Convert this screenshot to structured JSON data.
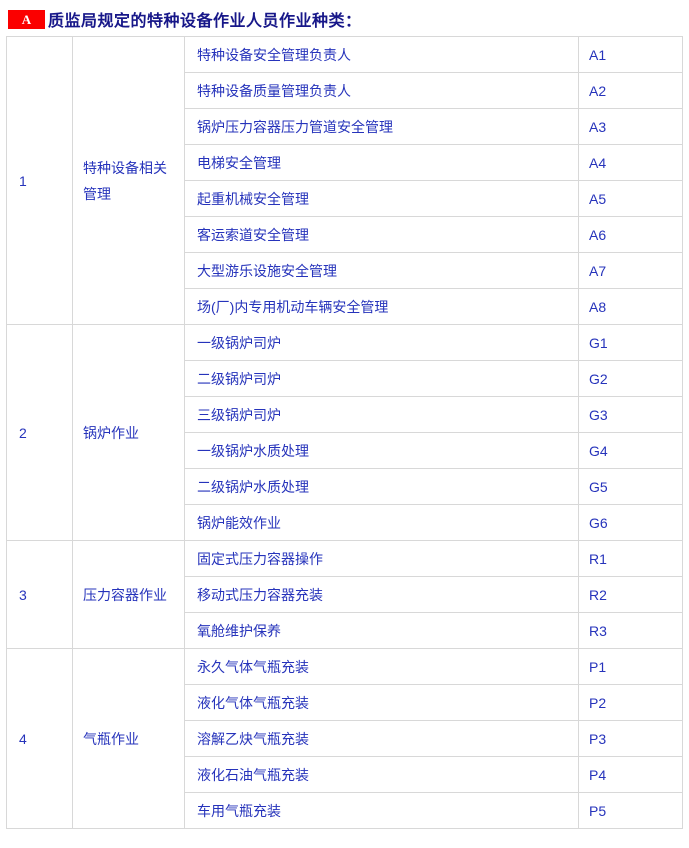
{
  "header": {
    "badge_label": "A",
    "title": "质监局规定的特种设备作业人员作业种类："
  },
  "table": {
    "groups": [
      {
        "num": "1",
        "category": "特种设备相关管理",
        "rows": [
          {
            "job": "特种设备安全管理负责人",
            "code": "A1"
          },
          {
            "job": "特种设备质量管理负责人",
            "code": "A2"
          },
          {
            "job": "锅炉压力容器压力管道安全管理",
            "code": "A3"
          },
          {
            "job": "电梯安全管理",
            "code": "A4"
          },
          {
            "job": "起重机械安全管理",
            "code": "A5"
          },
          {
            "job": "客运索道安全管理",
            "code": "A6"
          },
          {
            "job": "大型游乐设施安全管理",
            "code": "A7"
          },
          {
            "job": "场(厂)内专用机动车辆安全管理",
            "code": "A8"
          }
        ]
      },
      {
        "num": "2",
        "category": "锅炉作业",
        "rows": [
          {
            "job": "一级锅炉司炉",
            "code": "G1"
          },
          {
            "job": "二级锅炉司炉",
            "code": "G2"
          },
          {
            "job": "三级锅炉司炉",
            "code": "G3"
          },
          {
            "job": "一级锅炉水质处理",
            "code": "G4"
          },
          {
            "job": "二级锅炉水质处理",
            "code": "G5"
          },
          {
            "job": "锅炉能效作业",
            "code": "G6"
          }
        ]
      },
      {
        "num": "3",
        "category": "压力容器作业",
        "rows": [
          {
            "job": "固定式压力容器操作",
            "code": "R1"
          },
          {
            "job": "移动式压力容器充装",
            "code": "R2"
          },
          {
            "job": "氧舱维护保养",
            "code": "R3"
          }
        ]
      },
      {
        "num": "4",
        "category": "气瓶作业",
        "rows": [
          {
            "job": "永久气体气瓶充装",
            "code": "P1"
          },
          {
            "job": "液化气体气瓶充装",
            "code": "P2"
          },
          {
            "job": "溶解乙炔气瓶充装",
            "code": "P3"
          },
          {
            "job": "液化石油气瓶充装",
            "code": "P4"
          },
          {
            "job": "车用气瓶充装",
            "code": "P5"
          }
        ]
      }
    ]
  },
  "colors": {
    "badge_bg": "#fb0000",
    "badge_text": "#ffffff",
    "title_text": "#171789",
    "cell_text": "#2633bb",
    "border": "#d8d8d8"
  }
}
